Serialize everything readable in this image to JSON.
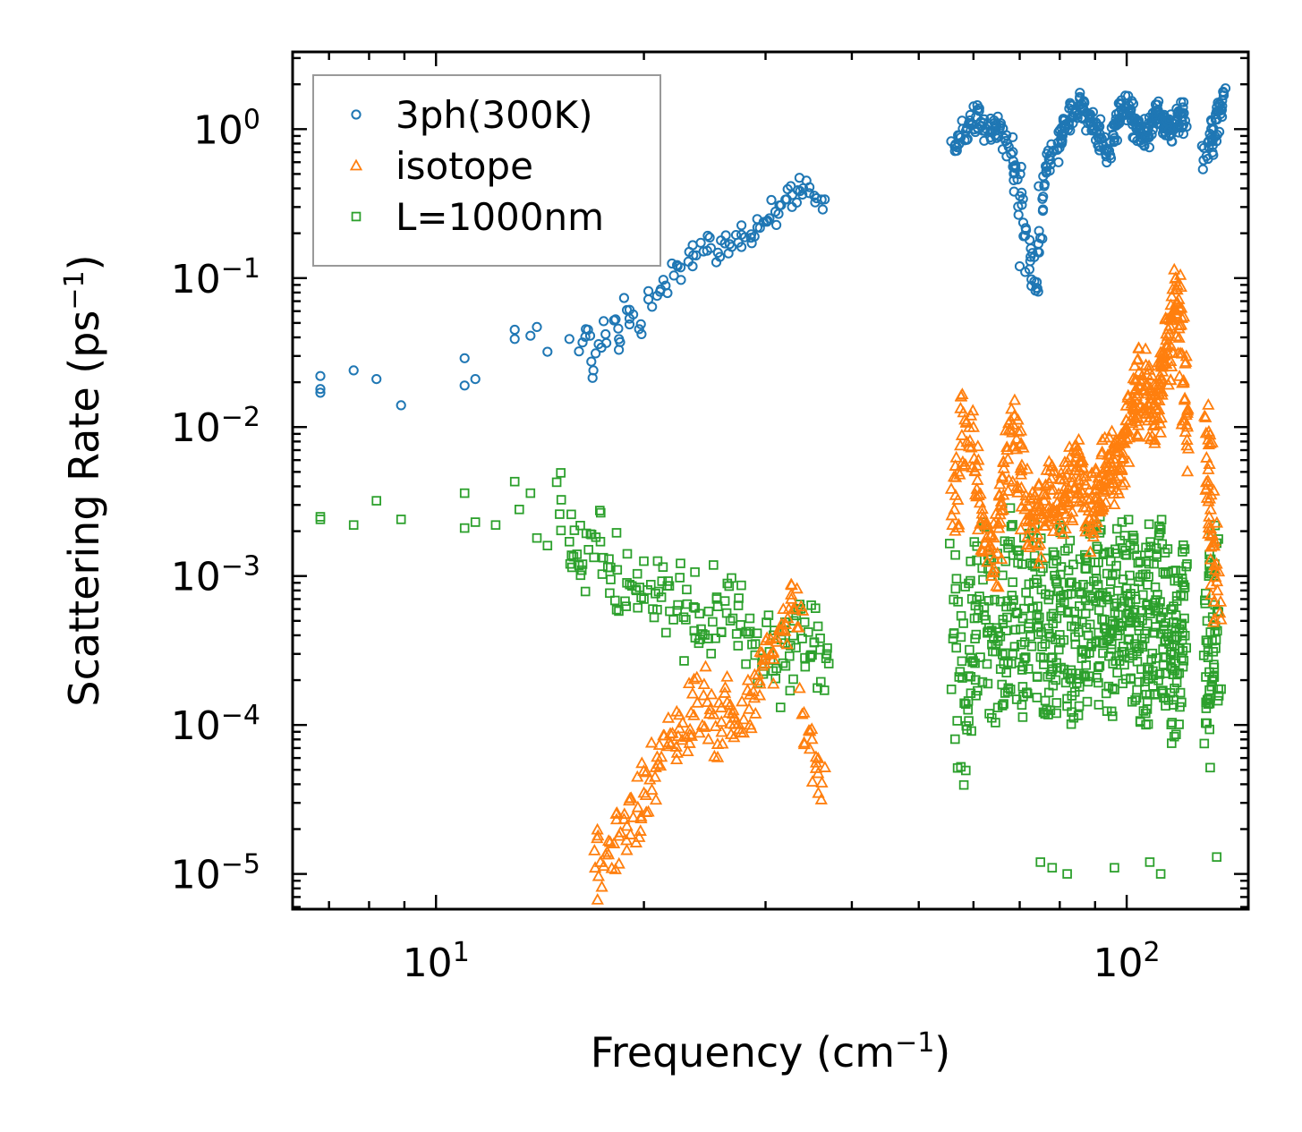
{
  "chart_data": {
    "type": "scatter",
    "title": "",
    "xlabel": "Frequency (cm",
    "xlabel_sup": "−1",
    "xlabel_tail": ")",
    "ylabel": "Scattering Rate (ps",
    "ylabel_sup": "−1",
    "ylabel_tail": ")",
    "xscale": "log",
    "yscale": "log",
    "xlim": [
      6.2,
      150
    ],
    "ylim": [
      5.8e-06,
      3.3
    ],
    "legend_position": "top-left",
    "x_major_ticks": [
      {
        "value": 10,
        "base": "10",
        "exp": "1"
      },
      {
        "value": 100,
        "base": "10",
        "exp": "2"
      }
    ],
    "y_major_ticks": [
      {
        "value": 1,
        "base": "10",
        "exp": "0"
      },
      {
        "value": 0.1,
        "base": "10",
        "exp": "−1"
      },
      {
        "value": 0.01,
        "base": "10",
        "exp": "−2"
      },
      {
        "value": 0.001,
        "base": "10",
        "exp": "−3"
      },
      {
        "value": 0.0001,
        "base": "10",
        "exp": "−4"
      },
      {
        "value": 1e-05,
        "base": "10",
        "exp": "−5"
      }
    ],
    "series": [
      {
        "name": "3ph(300K)",
        "marker": "circle",
        "color": "#1f77b4",
        "x": [
          6.8,
          6.8,
          6.8,
          7.6,
          8.2,
          8.9,
          11.0,
          11.0,
          11.4,
          13.0,
          13.0,
          13.7,
          14.0,
          14.5,
          15.6,
          16.3,
          16.6,
          16.9,
          17.2,
          17.6,
          18.1,
          18.4,
          18.9,
          19.3,
          19.8,
          20.3,
          20.9,
          21.5,
          22.1,
          22.6,
          23.2,
          23.8,
          24.4,
          25.0,
          25.6,
          26.2,
          26.8,
          27.4,
          28.0,
          28.6,
          29.2,
          29.8,
          30.4,
          31.0,
          31.6,
          32.2,
          32.8,
          33.4,
          34.0,
          34.7,
          35.4,
          36.3,
          56.5,
          57.5,
          58.5,
          59.5,
          60.5,
          61.5,
          62.5,
          63.5,
          64.5,
          65.5,
          66.5,
          67.5,
          68.5,
          69.5,
          70.5,
          71.5,
          72.5,
          73.5,
          74.5,
          75.5,
          76.5,
          77.5,
          78.5,
          79.5,
          80.5,
          81.5,
          82.5,
          83.5,
          84.5,
          85.5,
          86.5,
          87.5,
          88.5,
          89.5,
          90.5,
          91.5,
          92.5,
          93.5,
          94.5,
          95.5,
          96.5,
          97.5,
          98.5,
          99.5,
          100.5,
          101.5,
          102.5,
          103.5,
          104.5,
          105.5,
          106.5,
          107.5,
          108.5,
          109.5,
          110.5,
          111.5,
          112.5,
          113.5,
          114.5,
          115.5,
          116.5,
          117.5,
          118.5,
          119.5,
          120.5,
          121.5,
          130.5,
          131.5,
          132.5,
          133.5,
          134.5,
          135.5,
          136.5,
          137.5
        ],
        "y": [
          0.022,
          0.018,
          0.017,
          0.024,
          0.021,
          0.014,
          0.029,
          0.019,
          0.021,
          0.045,
          0.039,
          0.041,
          0.047,
          0.032,
          0.039,
          0.037,
          0.045,
          0.024,
          0.036,
          0.042,
          0.052,
          0.033,
          0.061,
          0.057,
          0.049,
          0.072,
          0.076,
          0.089,
          0.104,
          0.118,
          0.129,
          0.142,
          0.151,
          0.159,
          0.148,
          0.171,
          0.162,
          0.173,
          0.188,
          0.197,
          0.219,
          0.238,
          0.252,
          0.279,
          0.309,
          0.338,
          0.362,
          0.389,
          0.401,
          0.372,
          0.322,
          0.289,
          0.79,
          0.88,
          0.97,
          1.09,
          1.21,
          1.12,
          1.01,
          0.96,
          0.91,
          1.02,
          0.87,
          0.76,
          0.61,
          0.46,
          0.31,
          0.21,
          0.13,
          0.095,
          0.17,
          0.34,
          0.51,
          0.62,
          0.72,
          0.81,
          0.92,
          1.02,
          1.12,
          1.22,
          1.32,
          1.45,
          1.38,
          1.29,
          1.18,
          1.05,
          0.95,
          0.86,
          0.78,
          0.72,
          0.81,
          0.92,
          1.06,
          1.18,
          1.28,
          1.38,
          1.33,
          1.23,
          1.14,
          1.04,
          0.95,
          0.86,
          0.91,
          1.01,
          1.11,
          1.22,
          1.33,
          1.24,
          1.16,
          1.07,
          0.99,
          0.93,
          1.02,
          1.12,
          1.21,
          1.28,
          1.21,
          1.14,
          0.66,
          0.76,
          0.88,
          1.01,
          1.16,
          1.31,
          1.46,
          1.56
        ]
      },
      {
        "name": "isotope",
        "marker": "triangle",
        "color": "#ff7f0e",
        "x": [
          17.0,
          17.3,
          17.7,
          18.1,
          18.5,
          18.9,
          19.3,
          19.6,
          20.0,
          20.4,
          20.8,
          21.2,
          21.6,
          22.0,
          22.5,
          23.0,
          23.4,
          23.9,
          24.4,
          24.9,
          25.4,
          25.9,
          26.4,
          26.9,
          27.4,
          27.9,
          28.4,
          28.9,
          29.4,
          29.9,
          30.5,
          31.1,
          31.7,
          32.3,
          32.9,
          33.5,
          34.1,
          34.8,
          35.5,
          36.2,
          56.3,
          57.3,
          58.3,
          59.3,
          60.3,
          61.3,
          62.3,
          63.3,
          64.3,
          65.3,
          66.3,
          67.3,
          68.3,
          69.3,
          70.3,
          71.3,
          72.3,
          73.3,
          74.3,
          75.3,
          76.3,
          77.3,
          78.3,
          79.3,
          80.3,
          81.3,
          82.3,
          83.3,
          84.3,
          85.3,
          86.3,
          87.3,
          88.3,
          89.3,
          90.3,
          91.3,
          92.3,
          93.3,
          94.3,
          95.3,
          96.3,
          97.3,
          98.3,
          99.3,
          100.3,
          101.3,
          102.3,
          103.3,
          104.3,
          105.3,
          106.3,
          107.3,
          108.3,
          109.3,
          110.3,
          111.3,
          112.3,
          113.3,
          114.3,
          115.3,
          116.3,
          117.3,
          118.3,
          119.3,
          120.3,
          121.3,
          122.3,
          130.3,
          131.3,
          132.3,
          133.3,
          134.3,
          135.3
        ],
        "y": [
          1.1e-05,
          1.2e-05,
          1.4e-05,
          1.6e-05,
          1.9e-05,
          2.1e-05,
          2.4e-05,
          2.8e-05,
          3.5e-05,
          4.3e-05,
          5.2e-05,
          6.1e-05,
          7.2e-05,
          8.8e-05,
          9.5e-05,
          8.3e-05,
          0.000121,
          0.000141,
          0.000158,
          0.000119,
          9.8e-05,
          0.000105,
          0.000142,
          0.000119,
          0.000102,
          0.000109,
          0.000128,
          0.000152,
          0.000198,
          0.000258,
          0.000298,
          0.000361,
          0.000438,
          0.000521,
          0.000598,
          0.000451,
          0.000121,
          9.1e-05,
          6.1e-05,
          4.1e-05,
          0.0028,
          0.0048,
          0.0112,
          0.0081,
          0.0051,
          0.0031,
          0.0022,
          0.0016,
          0.0013,
          0.0021,
          0.0035,
          0.0061,
          0.0092,
          0.0071,
          0.0048,
          0.0032,
          0.0024,
          0.0021,
          0.0019,
          0.0026,
          0.0035,
          0.0042,
          0.0038,
          0.0031,
          0.0028,
          0.0033,
          0.0039,
          0.0046,
          0.0051,
          0.0044,
          0.0036,
          0.0029,
          0.0024,
          0.0027,
          0.0034,
          0.0041,
          0.0049,
          0.0057,
          0.0062,
          0.0054,
          0.0045,
          0.0052,
          0.0061,
          0.0078,
          0.0095,
          0.0112,
          0.0135,
          0.0162,
          0.0191,
          0.0221,
          0.0178,
          0.0142,
          0.0116,
          0.0102,
          0.0131,
          0.0168,
          0.0212,
          0.0268,
          0.0341,
          0.0421,
          0.0521,
          0.0612,
          0.0691,
          0.0481,
          0.0311,
          0.0152,
          0.0082,
          0.0091,
          0.0052,
          0.0028,
          0.0016,
          0.0011,
          0.0008
        ]
      },
      {
        "name": "L=1000nm",
        "marker": "square",
        "color": "#2ca02c",
        "x": [
          6.8,
          6.8,
          7.6,
          8.2,
          8.9,
          11.0,
          11.0,
          11.4,
          12.2,
          13.0,
          13.2,
          13.7,
          14.0,
          14.5,
          15.1,
          15.6,
          16.0,
          16.3,
          16.8,
          17.3,
          17.8,
          18.3,
          18.9,
          19.5,
          20.0,
          20.6,
          21.2,
          21.8,
          22.4,
          23.0,
          23.6,
          24.2,
          24.8,
          25.5,
          26.2,
          26.9,
          27.6,
          28.3,
          29.0,
          29.7,
          30.4,
          31.1,
          31.8,
          32.5,
          33.2,
          33.9,
          34.6,
          35.3,
          36.0,
          36.7,
          56.2,
          57.2,
          58.2,
          59.2,
          60.2,
          61.2,
          62.2,
          63.2,
          64.2,
          65.2,
          66.2,
          67.2,
          68.2,
          69.2,
          70.2,
          71.2,
          72.2,
          73.2,
          74.2,
          75.2,
          76.2,
          77.2,
          78.2,
          79.2,
          80.2,
          81.2,
          82.2,
          83.2,
          84.2,
          85.2,
          86.2,
          87.2,
          88.2,
          89.2,
          90.2,
          91.2,
          92.2,
          93.2,
          94.2,
          95.2,
          96.2,
          97.2,
          98.2,
          99.2,
          100.2,
          101.2,
          102.2,
          103.2,
          104.2,
          105.2,
          106.2,
          107.2,
          108.2,
          109.2,
          110.2,
          111.2,
          112.2,
          113.2,
          114.2,
          115.2,
          116.2,
          117.2,
          118.2,
          119.2,
          120.2,
          121.2,
          130.2,
          131.2,
          132.2,
          133.2,
          134.2,
          135.2
        ],
        "y": [
          0.0024,
          0.0025,
          0.0022,
          0.0032,
          0.0024,
          0.0036,
          0.0021,
          0.0023,
          0.0022,
          0.0043,
          0.0028,
          0.0036,
          0.0018,
          0.0016,
          0.0026,
          0.0017,
          0.0014,
          0.0012,
          0.0019,
          0.0017,
          0.0013,
          0.0011,
          0.0009,
          0.0008,
          0.0007,
          0.0006,
          0.00072,
          0.00058,
          0.00064,
          0.00051,
          0.00062,
          0.00044,
          0.00038,
          0.00072,
          0.00068,
          0.00052,
          0.00047,
          0.00041,
          0.00035,
          0.00028,
          0.00031,
          0.00024,
          0.00026,
          0.00029,
          0.00033,
          0.00038,
          0.00042,
          0.00036,
          0.00032,
          0.00028,
          0.00041,
          0.00021,
          0.00014,
          0.00032,
          0.00052,
          0.00073,
          0.00062,
          0.00045,
          0.00038,
          0.00042,
          0.00051,
          0.00068,
          0.00074,
          0.00057,
          0.00044,
          0.00036,
          0.00048,
          0.00061,
          0.00055,
          0.00042,
          0.00035,
          0.00041,
          0.00048,
          0.00052,
          0.00061,
          0.00067,
          0.00058,
          0.00046,
          0.00039,
          0.00042,
          0.00049,
          0.00056,
          0.00063,
          0.00071,
          0.00068,
          0.00059,
          0.00051,
          0.00044,
          0.00038,
          0.00041,
          0.00047,
          0.00055,
          0.00062,
          0.00068,
          0.00074,
          0.00066,
          0.00057,
          0.00049,
          0.00043,
          0.00038,
          0.00041,
          0.00048,
          0.00056,
          0.00063,
          0.00069,
          0.00061,
          0.00053,
          0.00046,
          0.00041,
          0.00035,
          0.00031,
          0.00034,
          0.00039,
          0.00044,
          0.00048,
          0.00052,
          0.00021,
          0.00031,
          0.00042,
          0.00053,
          0.00064,
          0.00058
        ]
      }
    ],
    "minor_scatter": {
      "3ph(300K)": {
        "low_x": [
          70.0,
          71.3,
          72.8,
          74.0
        ],
        "low_y": [
          0.12,
          0.11,
          0.098,
          0.086
        ]
      },
      "isotope": {
        "high_x": [
          119.0,
          120.0,
          121.0
        ],
        "high_y": [
          0.072,
          0.063,
          0.055
        ]
      },
      "L=1000nm": {
        "low_x": [
          75.0,
          78.0,
          82.0,
          96.0,
          108.0,
          112.0,
          135.0
        ],
        "low_y": [
          1.2e-05,
          1.1e-05,
          1e-05,
          1.1e-05,
          1.2e-05,
          1e-05,
          1.3e-05
        ]
      }
    }
  }
}
